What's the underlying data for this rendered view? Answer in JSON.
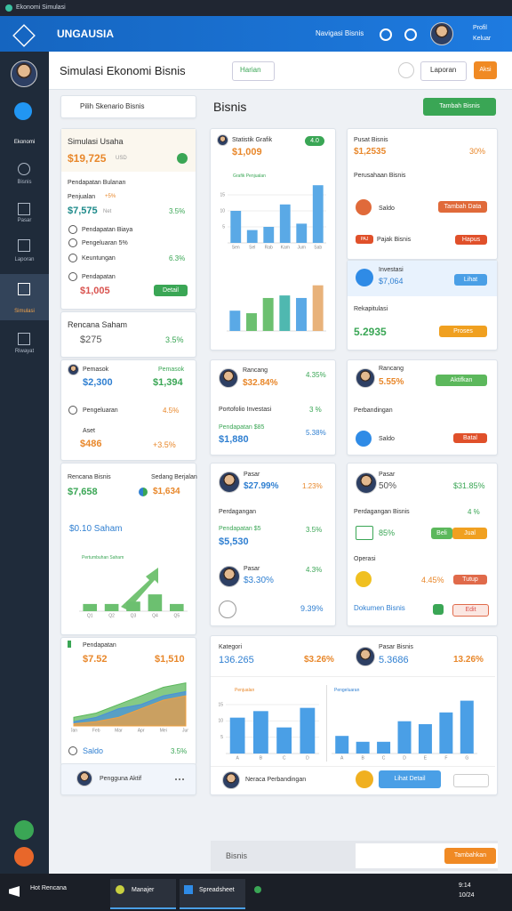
{
  "window": {
    "title": "Ekonomi Simulasi"
  },
  "header": {
    "brand": "UNGAUSIA",
    "nav": "Navigasi Bisnis",
    "profile": [
      "Profil",
      "Keluar"
    ]
  },
  "sidebar": [
    "Ekonomi",
    "Bisnis",
    "Pasar",
    "Laporan",
    "Simulasi",
    "Riwayat"
  ],
  "toolbar": {
    "title": "Simulasi Ekonomi Bisnis",
    "period": "Harian",
    "report": "Laporan",
    "action": "Aksi",
    "section": "Bisnis",
    "add": "Tambah Bisnis"
  },
  "left": {
    "select": "Pilih Skenario Bisnis",
    "a": {
      "title": "Simulasi Usaha",
      "value": "$19,725",
      "unit": "USD",
      "sub": "Pendapatan Bulanan",
      "sales": "Penjualan",
      "badge": "+5%",
      "amount": "$7,575",
      "net": "Net",
      "pct": "3.5%",
      "rows": [
        "Pendapatan Biaya",
        "Pengeluaran 5%",
        "Keuntungan"
      ],
      "rowpct": "6.3%",
      "income": "Pendapatan",
      "total": "$1,005",
      "button": "Detail"
    },
    "b": {
      "title": "Rencana Saham",
      "value": "$275",
      "pct": "3.5%"
    },
    "c": {
      "title": "Pemasok",
      "tag": "Pemasok",
      "v1": "$2,300",
      "v2": "$1,394",
      "row": "Pengeluaran",
      "rowpct": "4.5%",
      "asset": "Aset",
      "av": "$486",
      "apct": "+3.5%"
    },
    "d": {
      "title": "Rencana Bisnis",
      "status": "Sedang Berjalan",
      "v1": "$7,658",
      "v2": "$1,634",
      "sub": "$0.10 Saham",
      "chart_label": "Pertumbuhan Saham",
      "chart": {
        "type": "bar",
        "categories": [
          "Q1",
          "Q2",
          "Q3",
          "Q4",
          "Q5"
        ],
        "values": [
          3,
          3,
          4,
          7,
          3
        ],
        "ylim": [
          0,
          20
        ],
        "color": "#6cc070"
      }
    },
    "e": {
      "title": "Pendapatan",
      "v1": "$7.52",
      "v2": "$1,510",
      "foot": "Saldo",
      "pct": "3.5%",
      "chart": {
        "type": "area",
        "categories": [
          "Jan",
          "Feb",
          "Mar",
          "Apr",
          "Mei",
          "Jun"
        ],
        "ylim": [
          0,
          12
        ],
        "series": [
          {
            "color": "#5cb85c",
            "values": [
              2,
              3,
              5,
              7,
              9,
              10
            ]
          },
          {
            "color": "#4a90d9",
            "values": [
              1,
              2,
              4,
              5,
              7,
              8
            ]
          },
          {
            "color": "#f0a040",
            "values": [
              0.5,
              1,
              2,
              4,
              6,
              7
            ]
          }
        ]
      }
    },
    "f": {
      "user": "Pengguna Aktif"
    }
  },
  "middle": {
    "m1": {
      "title": "Statistik Grafik",
      "badge": "4.0",
      "value": "$1,009",
      "chart_label": "Grafik Penjualan",
      "chart": {
        "type": "bar",
        "categories": [
          "Sen",
          "Sel",
          "Rab",
          "Kam",
          "Jum",
          "Sab"
        ],
        "values": [
          10,
          4,
          5,
          12,
          6,
          18
        ],
        "ylim": [
          0,
          20
        ],
        "yticks": [
          5,
          10,
          15
        ],
        "color": "#5aa9e6"
      },
      "chart2": {
        "type": "bar",
        "values": [
          8,
          7,
          13,
          14,
          13,
          18
        ],
        "ylim": [
          0,
          20
        ],
        "colors": [
          "#5aa9e6",
          "#6cc070",
          "#6cc070",
          "#4fb8b0",
          "#5aa9e6",
          "#e8b27a"
        ]
      }
    },
    "m2": {
      "title": "Rancang",
      "v1": "$32.84%",
      "v2": "4.35%",
      "row": "Portofolio Investasi",
      "rowpct": "3 %",
      "sub": "Pendapatan $85",
      "v3": "$1,880",
      "v3pct": "5.38%"
    },
    "m3": {
      "title": "Pasar",
      "v1": "$27.99%",
      "v1pct": "1.23%",
      "row": "Perdagangan",
      "sub": "Pendapatan $5",
      "v2": "$5,530",
      "v2pct": "3.5%",
      "title2": "Pasar",
      "v3": "$3.30%",
      "v3pct": "4.3%",
      "v4": "9.39%"
    }
  },
  "right": {
    "r1": {
      "title": "Pusat Bisnis",
      "value": "$1,2535",
      "pct": "30%",
      "sub": "Perusahaan Bisnis",
      "item": "Saldo",
      "button": "Tambah Data",
      "tag": "PAJ",
      "item2": "Pajak Bisnis",
      "button2": "Hapus"
    },
    "r2": {
      "title": "Investasi",
      "value": "$7,064",
      "button": "Lihat",
      "sub": "Rekapitulasi",
      "value2": "5.2935",
      "button2": "Proses"
    },
    "r3": {
      "title": "Rancang",
      "value": "5.55%",
      "button": "Aktifkan",
      "sub": "Perbandingan",
      "item": "Saldo",
      "button2": "Batal"
    },
    "r4": {
      "title": "Pasar",
      "value": "50%",
      "pct": "$31.85%",
      "sub": "Perdagangan Bisnis",
      "subpct": "4 %",
      "item": "85%",
      "b1": "Beli",
      "b2": "Jual",
      "sub2": "Operasi",
      "pct2": "4.45%",
      "button": "Tutup",
      "doc": "Dokumen Bisnis",
      "button2": "Edit"
    }
  },
  "wide": {
    "title": "Kategori",
    "v1": "136.265",
    "v1pct": "$3.26%",
    "title2": "Pasar Bisnis",
    "v2": "5.3686",
    "v2pct": "13.26%",
    "label1": "Penjualan",
    "label2": "Pengeluaran",
    "chart1": {
      "type": "bar",
      "categories": [
        "A",
        "B",
        "C",
        "D"
      ],
      "values": [
        11,
        13,
        8,
        14
      ],
      "ylim": [
        0,
        18
      ],
      "yticks": [
        5,
        10,
        15
      ],
      "color": "#4a9fe6"
    },
    "chart2": {
      "type": "bar",
      "categories": [
        "A",
        "B",
        "C",
        "D",
        "E",
        "F",
        "G"
      ],
      "values": [
        6,
        4,
        4,
        11,
        10,
        14,
        18
      ],
      "ylim": [
        0,
        20
      ],
      "color": "#4a9fe6"
    },
    "user": "Neraca Perbandingan",
    "button": "Lihat Detail"
  },
  "footer": {
    "label": "Bisnis",
    "button": "Tambahkan"
  },
  "taskbar": {
    "start": "Hot Rencana",
    "apps": [
      "Manajer",
      "Spreadsheet"
    ],
    "time": "9:14",
    "date": "10/24"
  }
}
